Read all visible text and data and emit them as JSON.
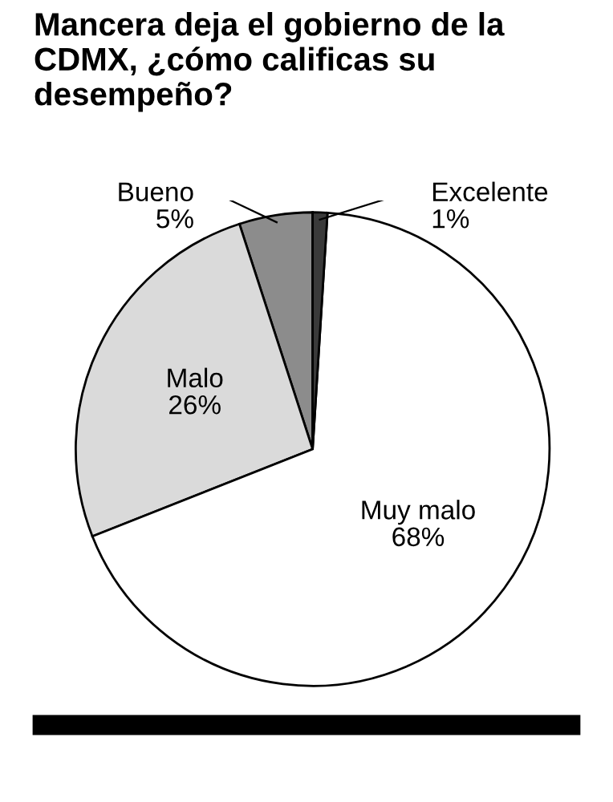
{
  "chart_data": {
    "type": "pie",
    "title": "Mancera deja el gobierno de la CDMX, ¿cómo calificas su desempeño?",
    "categories": [
      "Bueno",
      "Malo",
      "Muy malo",
      "Excelente"
    ],
    "values": [
      5,
      26,
      68,
      1
    ],
    "colors": [
      "#8c8c8c",
      "#dadada",
      "#ffffff",
      "#3a3a3a"
    ],
    "value_labels": [
      "5%",
      "26%",
      "68%",
      "1%"
    ]
  }
}
